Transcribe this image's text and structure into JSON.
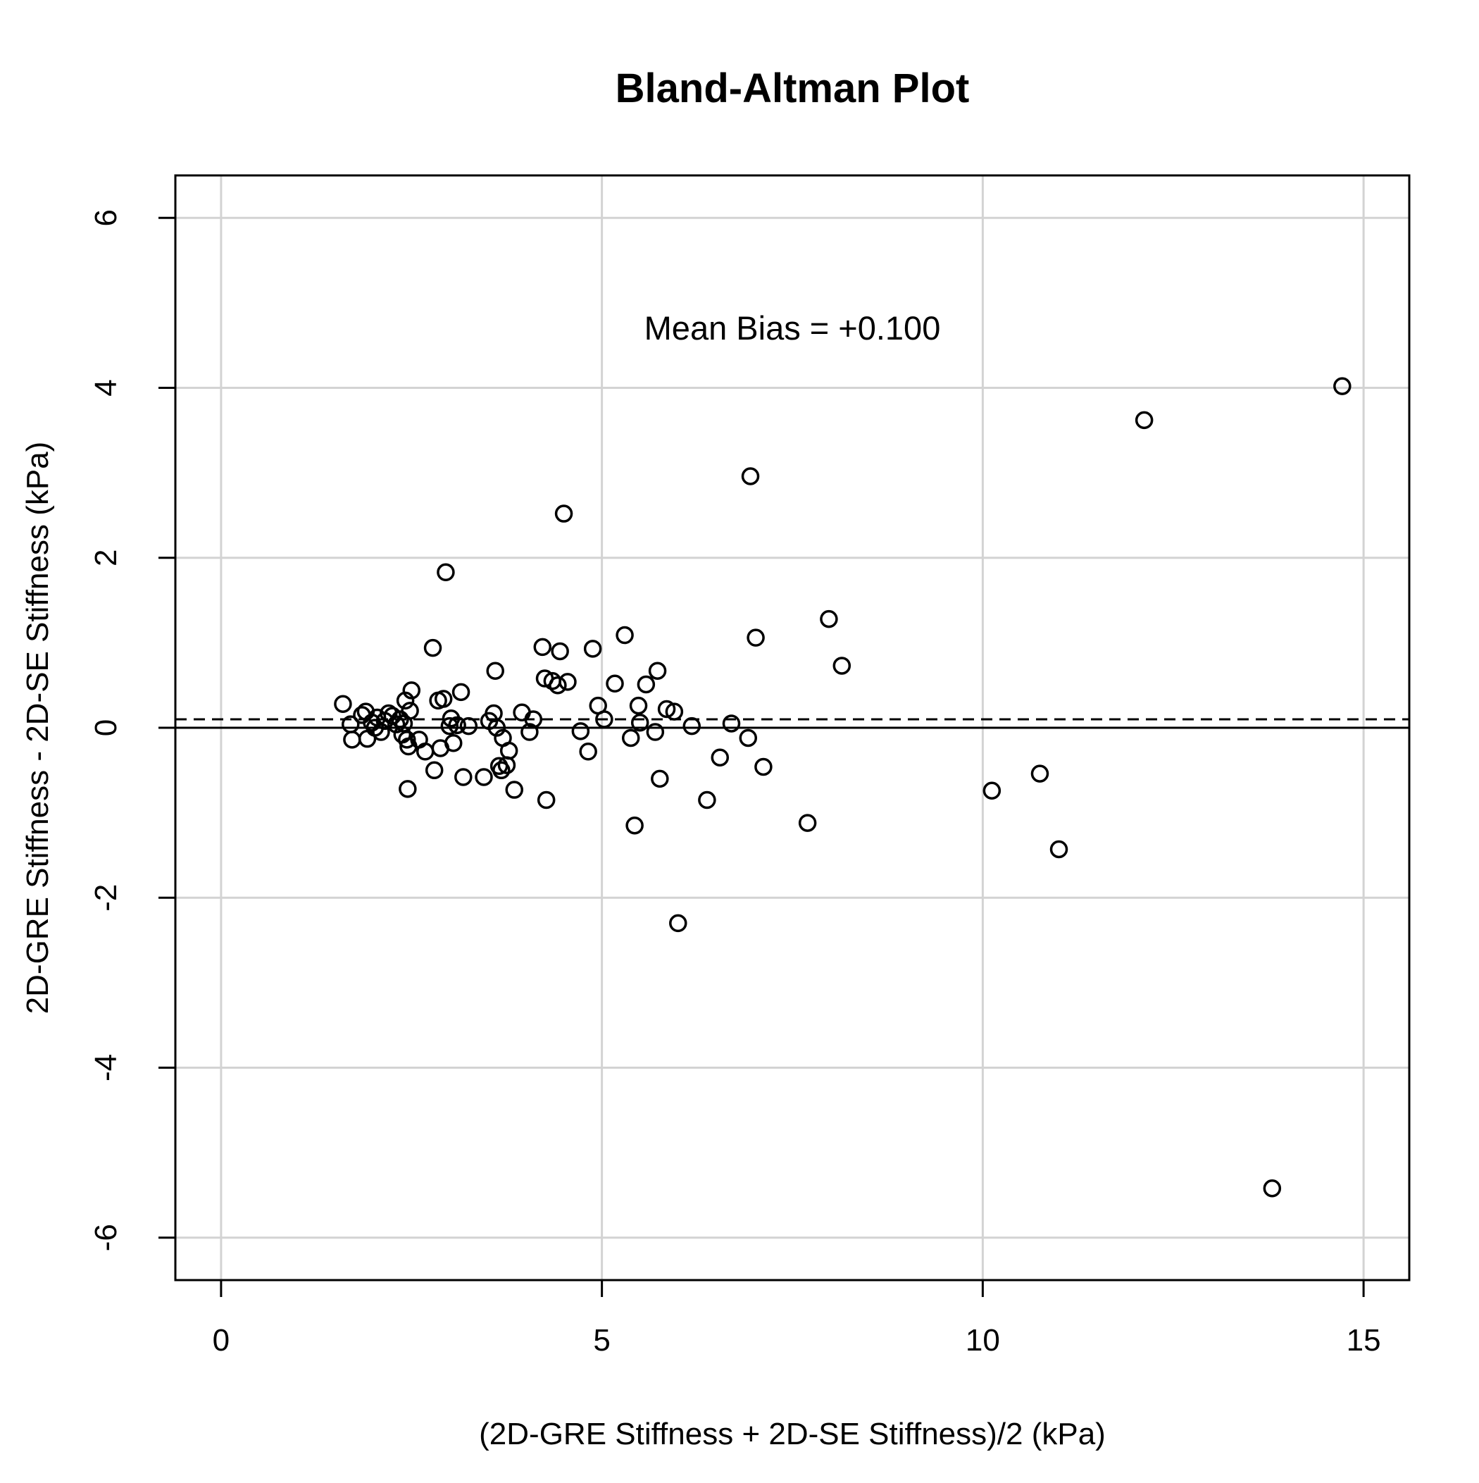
{
  "chart_data": {
    "type": "scatter",
    "title": "Bland-Altman Plot",
    "xlabel": "(2D-GRE Stiffness + 2D-SE Stiffness)/2 (kPa)",
    "ylabel": "2D-GRE Stiffness - 2D-SE Stiffness (kPa)",
    "xlim": [
      -0.6,
      15.6
    ],
    "ylim": [
      -6.5,
      6.5
    ],
    "x_ticks": [
      0,
      5,
      10,
      15
    ],
    "y_ticks": [
      -6,
      -4,
      -2,
      0,
      2,
      4,
      6
    ],
    "x_tick_labels": [
      "0",
      "5",
      "10",
      "15"
    ],
    "y_tick_labels": [
      "-6",
      "-4",
      "-2",
      "0",
      "2",
      "4",
      "6"
    ],
    "grid": true,
    "zero_line": 0,
    "mean_bias": 0.1,
    "annotation": {
      "text": "Mean Bias = +0.100",
      "x": 7.5,
      "y": 4.7
    },
    "series": [
      {
        "marker": "open-circle",
        "points": [
          [
            1.6,
            0.28
          ],
          [
            1.7,
            0.04
          ],
          [
            1.72,
            -0.14
          ],
          [
            1.85,
            0.15
          ],
          [
            1.9,
            0.19
          ],
          [
            1.92,
            -0.13
          ],
          [
            1.98,
            0.06
          ],
          [
            2.02,
            0.0
          ],
          [
            2.05,
            0.12
          ],
          [
            2.1,
            -0.05
          ],
          [
            2.15,
            0.08
          ],
          [
            2.2,
            0.17
          ],
          [
            2.25,
            0.14
          ],
          [
            2.3,
            0.04
          ],
          [
            2.35,
            0.1
          ],
          [
            2.38,
            -0.08
          ],
          [
            2.4,
            0.05
          ],
          [
            2.42,
            0.32
          ],
          [
            2.44,
            -0.14
          ],
          [
            2.46,
            -0.22
          ],
          [
            2.48,
            0.2
          ],
          [
            2.5,
            0.44
          ],
          [
            2.45,
            -0.72
          ],
          [
            2.6,
            -0.14
          ],
          [
            2.68,
            -0.28
          ],
          [
            2.78,
            0.94
          ],
          [
            2.8,
            -0.5
          ],
          [
            2.85,
            0.32
          ],
          [
            2.88,
            -0.24
          ],
          [
            2.92,
            0.34
          ],
          [
            2.95,
            1.83
          ],
          [
            3.0,
            0.02
          ],
          [
            3.02,
            0.11
          ],
          [
            3.05,
            -0.18
          ],
          [
            3.1,
            0.03
          ],
          [
            3.15,
            0.42
          ],
          [
            3.18,
            -0.58
          ],
          [
            3.25,
            0.02
          ],
          [
            3.45,
            -0.58
          ],
          [
            3.52,
            0.08
          ],
          [
            3.58,
            0.17
          ],
          [
            3.6,
            0.67
          ],
          [
            3.62,
            0.0
          ],
          [
            3.65,
            -0.45
          ],
          [
            3.68,
            -0.5
          ],
          [
            3.7,
            -0.12
          ],
          [
            3.75,
            -0.44
          ],
          [
            3.78,
            -0.27
          ],
          [
            3.85,
            -0.73
          ],
          [
            3.95,
            0.18
          ],
          [
            4.05,
            -0.05
          ],
          [
            4.1,
            0.1
          ],
          [
            4.22,
            0.95
          ],
          [
            4.25,
            0.58
          ],
          [
            4.27,
            -0.85
          ],
          [
            4.35,
            0.55
          ],
          [
            4.42,
            0.5
          ],
          [
            4.45,
            0.9
          ],
          [
            4.5,
            2.52
          ],
          [
            4.55,
            0.54
          ],
          [
            4.72,
            -0.04
          ],
          [
            4.82,
            -0.28
          ],
          [
            4.88,
            0.93
          ],
          [
            4.95,
            0.26
          ],
          [
            5.03,
            0.1
          ],
          [
            5.17,
            0.52
          ],
          [
            5.3,
            1.09
          ],
          [
            5.38,
            -0.12
          ],
          [
            5.43,
            -1.15
          ],
          [
            5.48,
            0.26
          ],
          [
            5.5,
            0.06
          ],
          [
            5.58,
            0.51
          ],
          [
            5.7,
            -0.05
          ],
          [
            5.73,
            0.67
          ],
          [
            5.76,
            -0.6
          ],
          [
            5.85,
            0.22
          ],
          [
            5.95,
            0.19
          ],
          [
            6.0,
            -2.3
          ],
          [
            6.18,
            0.02
          ],
          [
            6.38,
            -0.85
          ],
          [
            6.55,
            -0.35
          ],
          [
            6.7,
            0.05
          ],
          [
            6.92,
            -0.12
          ],
          [
            6.95,
            2.96
          ],
          [
            7.02,
            1.06
          ],
          [
            7.12,
            -0.46
          ],
          [
            7.7,
            -1.12
          ],
          [
            7.98,
            1.28
          ],
          [
            8.15,
            0.73
          ],
          [
            10.12,
            -0.74
          ],
          [
            10.75,
            -0.54
          ],
          [
            11.0,
            -1.43
          ],
          [
            12.12,
            3.62
          ],
          [
            13.8,
            -5.42
          ],
          [
            14.72,
            4.02
          ]
        ]
      }
    ]
  }
}
